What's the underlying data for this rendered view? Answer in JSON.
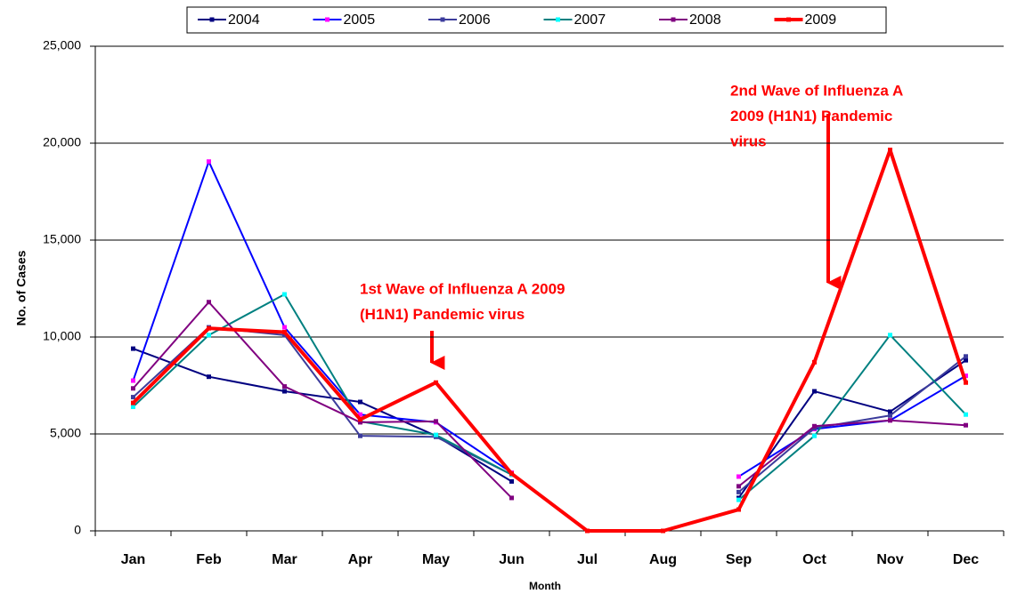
{
  "chart_data": {
    "type": "line",
    "x_label": "Month",
    "y_label": "No. of Cases",
    "categories": [
      "Jan",
      "Feb",
      "Mar",
      "Apr",
      "May",
      "Jun",
      "Jul",
      "Aug",
      "Sep",
      "Oct",
      "Nov",
      "Dec"
    ],
    "series": [
      {
        "name": "2004",
        "color": "#000080",
        "marker_color": "#000080",
        "values": [
          9400,
          7950,
          7200,
          6650,
          4900,
          2550,
          null,
          null,
          1700,
          7200,
          6150,
          8800
        ]
      },
      {
        "name": "2005",
        "color": "#0000ff",
        "marker_color": "#ff00ff",
        "values": [
          7750,
          19050,
          10500,
          6000,
          5600,
          3000,
          null,
          null,
          2800,
          5250,
          5700,
          8000
        ]
      },
      {
        "name": "2006",
        "color": "#3c3c9c",
        "marker_color": "#3c3c9c",
        "values": [
          6900,
          10500,
          10100,
          4900,
          4850,
          2900,
          null,
          null,
          2000,
          5300,
          5950,
          9000
        ]
      },
      {
        "name": "2007",
        "color": "#008080",
        "marker_color": "#00ffff",
        "values": [
          6400,
          10100,
          12200,
          5650,
          4950,
          2900,
          null,
          null,
          1600,
          4900,
          10100,
          6000
        ]
      },
      {
        "name": "2008",
        "color": "#800080",
        "marker_color": "#800080",
        "values": [
          7350,
          11800,
          7450,
          5600,
          5650,
          1700,
          null,
          null,
          2300,
          5400,
          5700,
          5450
        ]
      },
      {
        "name": "2009",
        "color": "#ff0000",
        "marker_color": "#ff0000",
        "width": 4,
        "values": [
          6600,
          10450,
          10250,
          5750,
          7650,
          2950,
          0,
          0,
          1100,
          8700,
          19650,
          7650
        ]
      }
    ],
    "ylim": [
      0,
      25000
    ],
    "yticks": [
      0,
      {
        "value": 5000,
        "label": "5,000"
      },
      {
        "value": 10000,
        "label": "10,000"
      },
      {
        "value": 15000,
        "label": "15,000"
      },
      {
        "value": 20000,
        "label": "20,000"
      },
      {
        "value": 25000,
        "label": "25,000"
      }
    ],
    "grid": true,
    "legend": "top",
    "annotations": [
      {
        "lines": [
          "1st Wave of Influenza A 2009",
          "(H1N1) Pandemic virus"
        ],
        "color": "#ff0000"
      },
      {
        "lines": [
          "2nd Wave of Influenza A",
          "2009 (H1N1) Pandemic",
          "virus"
        ],
        "color": "#ff0000"
      }
    ]
  }
}
